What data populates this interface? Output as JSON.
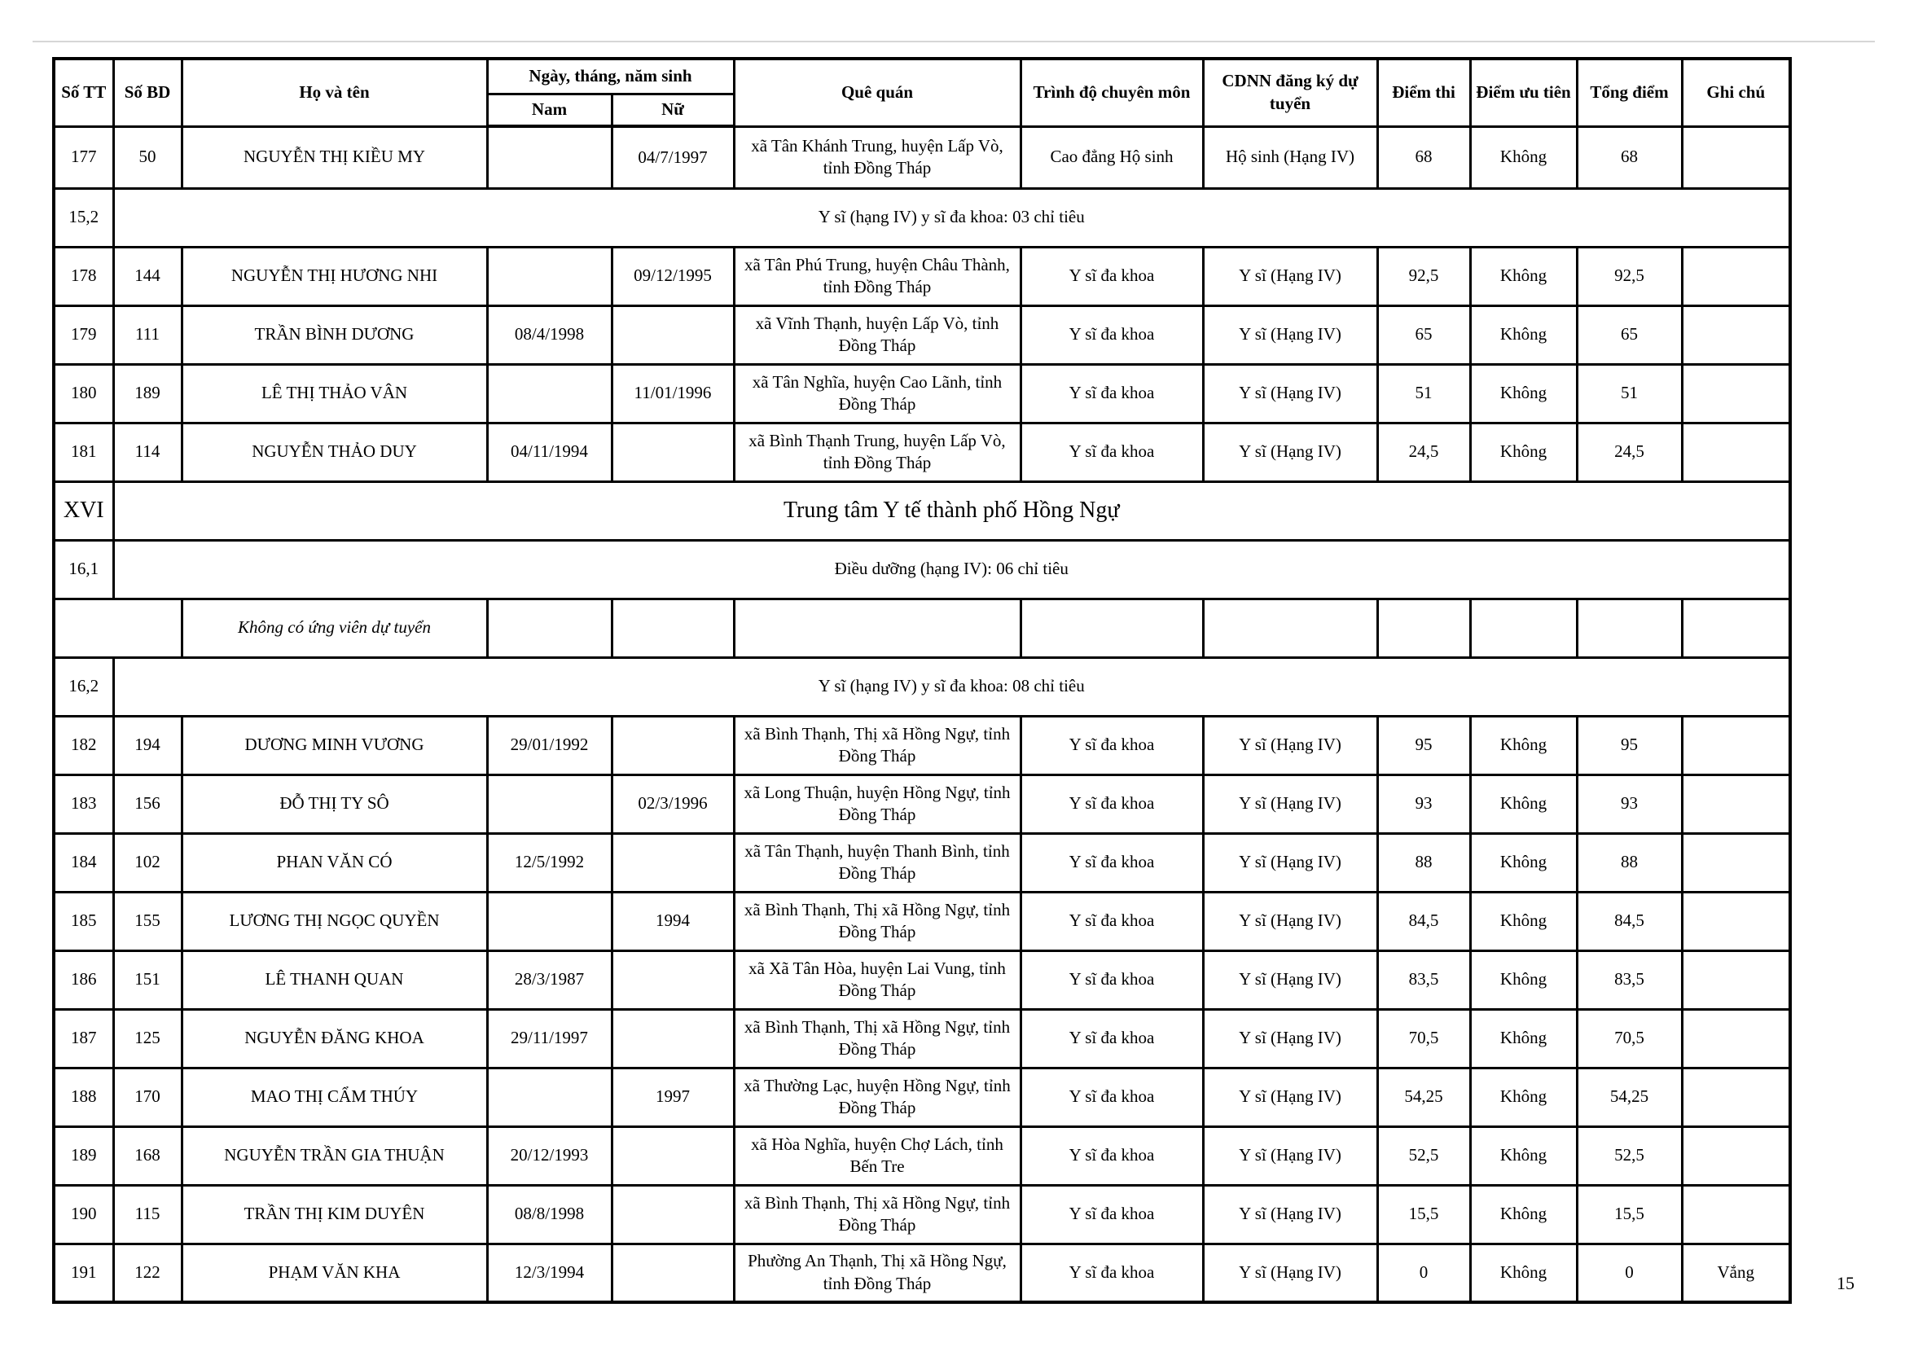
{
  "page": {
    "number": "15"
  },
  "table": {
    "headers": {
      "stt": "Số TT",
      "sobd": "Số BD",
      "hoten": "Họ và tên",
      "ngaysinh": "Ngày, tháng, năm sinh",
      "nam": "Nam",
      "nu": "Nữ",
      "quequan": "Quê quán",
      "trinhdo": "Trình độ chuyên môn",
      "cdnn": "CDNN đăng ký dự tuyển",
      "diemthi": "Điểm thi",
      "uutien": "Điểm ưu tiên",
      "tongdiem": "Tổng điểm",
      "ghichu": "Ghi chú"
    },
    "rows": [
      {
        "t": "c",
        "tt": "177",
        "bd": "50",
        "name": "NGUYỄN THỊ KIỀU MY",
        "nam": "",
        "nu": "04/7/1997",
        "que": "xã Tân Khánh Trung, huyện Lấp Vò, tỉnh Đồng Tháp",
        "trinhdo": "Cao đẳng Hộ sinh",
        "cdnn": "Hộ sinh (Hạng IV)",
        "thi": "68",
        "uutien": "Không",
        "tong": "68",
        "ghichu": ""
      },
      {
        "t": "s",
        "no": "15,2",
        "title": "Y sĩ (hạng IV) y sĩ đa khoa: 03 chỉ tiêu"
      },
      {
        "t": "c",
        "tt": "178",
        "bd": "144",
        "name": "NGUYỄN THỊ HƯƠNG NHI",
        "nam": "",
        "nu": "09/12/1995",
        "que": "xã Tân Phú Trung, huyện Châu Thành, tỉnh Đồng Tháp",
        "trinhdo": "Y sĩ đa khoa",
        "cdnn": "Y sĩ (Hạng IV)",
        "thi": "92,5",
        "uutien": "Không",
        "tong": "92,5",
        "ghichu": ""
      },
      {
        "t": "c",
        "tt": "179",
        "bd": "111",
        "name": "TRẦN BÌNH DƯƠNG",
        "nam": "08/4/1998",
        "nu": "",
        "que": "xã Vĩnh Thạnh, huyện Lấp Vò, tỉnh Đồng Tháp",
        "trinhdo": "Y sĩ đa khoa",
        "cdnn": "Y sĩ (Hạng IV)",
        "thi": "65",
        "uutien": "Không",
        "tong": "65",
        "ghichu": ""
      },
      {
        "t": "c",
        "tt": "180",
        "bd": "189",
        "name": "LÊ THỊ THẢO VÂN",
        "nam": "",
        "nu": "11/01/1996",
        "que": "xã Tân Nghĩa, huyện Cao Lãnh, tỉnh Đồng Tháp",
        "trinhdo": "Y sĩ đa khoa",
        "cdnn": "Y sĩ (Hạng IV)",
        "thi": "51",
        "uutien": "Không",
        "tong": "51",
        "ghichu": ""
      },
      {
        "t": "c",
        "tt": "181",
        "bd": "114",
        "name": "NGUYỄN THẢO DUY",
        "nam": "04/11/1994",
        "nu": "",
        "que": "xã Bình Thạnh Trung, huyện Lấp Vò, tỉnh Đồng Tháp",
        "trinhdo": "Y sĩ đa khoa",
        "cdnn": "Y sĩ (Hạng IV)",
        "thi": "24,5",
        "uutien": "Không",
        "tong": "24,5",
        "ghichu": ""
      },
      {
        "t": "m",
        "no": "XVI",
        "title": "Trung tâm Y tế thành phố Hồng Ngự"
      },
      {
        "t": "s",
        "no": "16,1",
        "title": "Điều dưỡng (hạng IV): 06 chỉ tiêu"
      },
      {
        "t": "e",
        "note": "Không có ứng viên dự tuyển"
      },
      {
        "t": "s",
        "no": "16,2",
        "title": "Y sĩ (hạng IV) y sĩ đa khoa: 08 chỉ tiêu"
      },
      {
        "t": "c",
        "tt": "182",
        "bd": "194",
        "name": "DƯƠNG MINH VƯƠNG",
        "nam": "29/01/1992",
        "nu": "",
        "que": "xã Bình Thạnh, Thị xã Hồng Ngự, tỉnh Đồng Tháp",
        "trinhdo": "Y sĩ đa khoa",
        "cdnn": "Y sĩ (Hạng IV)",
        "thi": "95",
        "uutien": "Không",
        "tong": "95",
        "ghichu": ""
      },
      {
        "t": "c",
        "tt": "183",
        "bd": "156",
        "name": "ĐỖ THỊ TY SÔ",
        "nam": "",
        "nu": "02/3/1996",
        "que": "xã Long Thuận, huyện Hồng Ngự, tỉnh Đồng Tháp",
        "trinhdo": "Y sĩ đa khoa",
        "cdnn": "Y sĩ (Hạng IV)",
        "thi": "93",
        "uutien": "Không",
        "tong": "93",
        "ghichu": ""
      },
      {
        "t": "c",
        "tt": "184",
        "bd": "102",
        "name": "PHAN VĂN CÓ",
        "nam": "12/5/1992",
        "nu": "",
        "que": "xã Tân Thạnh, huyện Thanh Bình, tỉnh Đồng Tháp",
        "trinhdo": "Y sĩ đa khoa",
        "cdnn": "Y sĩ (Hạng IV)",
        "thi": "88",
        "uutien": "Không",
        "tong": "88",
        "ghichu": ""
      },
      {
        "t": "c",
        "tt": "185",
        "bd": "155",
        "name": "LƯƠNG THỊ NGỌC QUYỀN",
        "nam": "",
        "nu": "1994",
        "que": "xã Bình Thạnh, Thị xã Hồng Ngự, tỉnh Đồng Tháp",
        "trinhdo": "Y sĩ đa khoa",
        "cdnn": "Y sĩ (Hạng IV)",
        "thi": "84,5",
        "uutien": "Không",
        "tong": "84,5",
        "ghichu": ""
      },
      {
        "t": "c",
        "tt": "186",
        "bd": "151",
        "name": "LÊ THANH QUAN",
        "nam": "28/3/1987",
        "nu": "",
        "que": "xã Xã Tân Hòa, huyện Lai Vung, tỉnh Đồng Tháp",
        "trinhdo": "Y sĩ đa khoa",
        "cdnn": "Y sĩ (Hạng IV)",
        "thi": "83,5",
        "uutien": "Không",
        "tong": "83,5",
        "ghichu": ""
      },
      {
        "t": "c",
        "tt": "187",
        "bd": "125",
        "name": "NGUYỄN ĐĂNG KHOA",
        "nam": "29/11/1997",
        "nu": "",
        "que": "xã Bình Thạnh, Thị xã Hồng Ngự, tỉnh Đồng Tháp",
        "trinhdo": "Y sĩ đa khoa",
        "cdnn": "Y sĩ (Hạng IV)",
        "thi": "70,5",
        "uutien": "Không",
        "tong": "70,5",
        "ghichu": ""
      },
      {
        "t": "c",
        "tt": "188",
        "bd": "170",
        "name": "MAO THỊ CẨM THÚY",
        "nam": "",
        "nu": "1997",
        "que": "xã Thường Lạc, huyện Hồng Ngự, tỉnh Đồng Tháp",
        "trinhdo": "Y sĩ đa khoa",
        "cdnn": "Y sĩ (Hạng IV)",
        "thi": "54,25",
        "uutien": "Không",
        "tong": "54,25",
        "ghichu": ""
      },
      {
        "t": "c",
        "tt": "189",
        "bd": "168",
        "name": "NGUYỄN TRẦN GIA THUẬN",
        "nam": "20/12/1993",
        "nu": "",
        "que": "xã Hòa Nghĩa, huyện Chợ Lách, tỉnh Bến Tre",
        "trinhdo": "Y sĩ đa khoa",
        "cdnn": "Y sĩ (Hạng IV)",
        "thi": "52,5",
        "uutien": "Không",
        "tong": "52,5",
        "ghichu": ""
      },
      {
        "t": "c",
        "tt": "190",
        "bd": "115",
        "name": "TRẦN THỊ KIM DUYÊN",
        "nam": "08/8/1998",
        "nu": "",
        "que": "xã Bình Thạnh, Thị xã Hồng Ngự, tỉnh Đồng Tháp",
        "trinhdo": "Y sĩ đa khoa",
        "cdnn": "Y sĩ (Hạng IV)",
        "thi": "15,5",
        "uutien": "Không",
        "tong": "15,5",
        "ghichu": ""
      },
      {
        "t": "c",
        "tt": "191",
        "bd": "122",
        "name": "PHẠM VĂN KHA",
        "nam": "12/3/1994",
        "nu": "",
        "que": "Phường An Thạnh, Thị xã Hồng Ngự, tỉnh Đồng Tháp",
        "trinhdo": "Y sĩ đa khoa",
        "cdnn": "Y sĩ (Hạng IV)",
        "thi": "0",
        "uutien": "Không",
        "tong": "0",
        "ghichu": "Vắng"
      }
    ]
  }
}
